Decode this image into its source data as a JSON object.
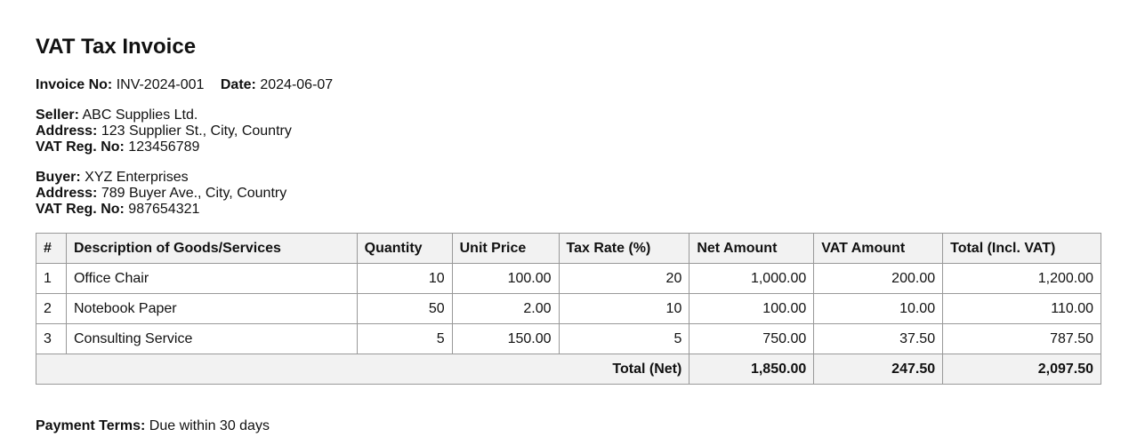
{
  "title": "VAT Tax Invoice",
  "invoice": {
    "no_label": "Invoice No:",
    "no": "INV-2024-001",
    "date_label": "Date:",
    "date": "2024-06-07"
  },
  "seller": {
    "name_label": "Seller:",
    "name": "ABC Supplies Ltd.",
    "address_label": "Address:",
    "address": "123 Supplier St., City, Country",
    "vat_label": "VAT Reg. No:",
    "vat": "123456789"
  },
  "buyer": {
    "name_label": "Buyer:",
    "name": "XYZ Enterprises",
    "address_label": "Address:",
    "address": "789 Buyer Ave., City, Country",
    "vat_label": "VAT Reg. No:",
    "vat": "987654321"
  },
  "table": {
    "headers": [
      "#",
      "Description of Goods/Services",
      "Quantity",
      "Unit Price",
      "Tax Rate (%)",
      "Net Amount",
      "VAT Amount",
      "Total (Incl. VAT)"
    ],
    "rows": [
      [
        "1",
        "Office Chair",
        "10",
        "100.00",
        "20",
        "1,000.00",
        "200.00",
        "1,200.00"
      ],
      [
        "2",
        "Notebook Paper",
        "50",
        "2.00",
        "10",
        "100.00",
        "10.00",
        "110.00"
      ],
      [
        "3",
        "Consulting Service",
        "5",
        "150.00",
        "5",
        "750.00",
        "37.50",
        "787.50"
      ]
    ],
    "total": {
      "label": "Total (Net)",
      "net": "1,850.00",
      "vat": "247.50",
      "gross": "2,097.50"
    }
  },
  "payment": {
    "label": "Payment Terms:",
    "value": "Due within 30 days"
  }
}
